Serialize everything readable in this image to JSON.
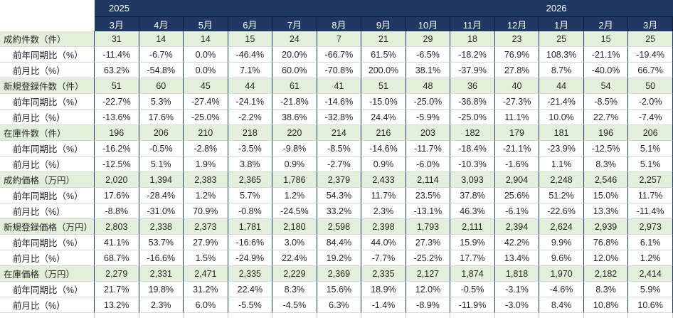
{
  "colors": {
    "header_bg": "#1F3864",
    "header_divider": "#0D1C38",
    "header_text": "#FFFFFF",
    "category_row_bg": "#E2EFDA",
    "sub_row_bg": "#FFFFFF",
    "vertical_grid": "#1F3864",
    "horizontal_grid": "#D9D9D9",
    "text": "#262626"
  },
  "chart_data": {
    "type": "table",
    "year_groups": [
      {
        "label": "2025",
        "span": 10
      },
      {
        "label": "2026",
        "span": 3
      }
    ],
    "months": [
      "3月",
      "4月",
      "5月",
      "6月",
      "7月",
      "8月",
      "9月",
      "10月",
      "11月",
      "12月",
      "1月",
      "2月",
      "3月"
    ],
    "rows": [
      {
        "label": "成約件数（件）",
        "style": "category",
        "values": [
          "31",
          "14",
          "14",
          "15",
          "24",
          "7",
          "21",
          "29",
          "18",
          "23",
          "25",
          "15",
          "25"
        ]
      },
      {
        "label": "前年同期比（%）",
        "style": "sub",
        "values": [
          "-11.4%",
          "-6.7%",
          "0.0%",
          "-46.4%",
          "20.0%",
          "-66.7%",
          "61.5%",
          "-6.5%",
          "-18.2%",
          "76.9%",
          "108.3%",
          "-21.1%",
          "-19.4%"
        ]
      },
      {
        "label": "前月比（%）",
        "style": "sub",
        "values": [
          "63.2%",
          "-54.8%",
          "0.0%",
          "7.1%",
          "60.0%",
          "-70.8%",
          "200.0%",
          "38.1%",
          "-37.9%",
          "27.8%",
          "8.7%",
          "-40.0%",
          "66.7%"
        ]
      },
      {
        "label": "新規登録件数（件）",
        "style": "category",
        "values": [
          "51",
          "60",
          "45",
          "44",
          "61",
          "41",
          "51",
          "48",
          "36",
          "40",
          "44",
          "54",
          "50"
        ]
      },
      {
        "label": "前年同期比（%）",
        "style": "sub",
        "values": [
          "-22.7%",
          "5.3%",
          "-27.4%",
          "-24.1%",
          "-21.8%",
          "-14.6%",
          "-15.0%",
          "-25.0%",
          "-36.8%",
          "-27.3%",
          "-21.4%",
          "-8.5%",
          "-2.0%"
        ]
      },
      {
        "label": "前月比（%）",
        "style": "sub",
        "values": [
          "-13.6%",
          "17.6%",
          "-25.0%",
          "-2.2%",
          "38.6%",
          "-32.8%",
          "24.4%",
          "-5.9%",
          "-25.0%",
          "11.1%",
          "10.0%",
          "22.7%",
          "-7.4%"
        ]
      },
      {
        "label": "在庫件数（件）",
        "style": "category",
        "values": [
          "196",
          "206",
          "210",
          "218",
          "220",
          "214",
          "216",
          "203",
          "182",
          "179",
          "181",
          "196",
          "206"
        ]
      },
      {
        "label": "前年同期比（%）",
        "style": "sub",
        "values": [
          "-16.2%",
          "-0.5%",
          "-2.8%",
          "-3.5%",
          "-9.8%",
          "-8.5%",
          "-14.6%",
          "-11.7%",
          "-18.4%",
          "-21.1%",
          "-23.9%",
          "-12.5%",
          "5.1%"
        ]
      },
      {
        "label": "前月比（%）",
        "style": "sub",
        "values": [
          "-12.5%",
          "5.1%",
          "1.9%",
          "3.8%",
          "0.9%",
          "-2.7%",
          "0.9%",
          "-6.0%",
          "-10.3%",
          "-1.6%",
          "1.1%",
          "8.3%",
          "5.1%"
        ]
      },
      {
        "label": "成約価格（万円）",
        "style": "category",
        "values": [
          "2,020",
          "1,394",
          "2,383",
          "2,365",
          "1,786",
          "2,379",
          "2,433",
          "2,114",
          "3,093",
          "2,904",
          "2,248",
          "2,546",
          "2,257"
        ]
      },
      {
        "label": "前年同期比（%）",
        "style": "sub",
        "values": [
          "17.6%",
          "-28.4%",
          "1.2%",
          "5.7%",
          "1.2%",
          "54.3%",
          "11.7%",
          "23.5%",
          "37.8%",
          "25.6%",
          "51.2%",
          "15.0%",
          "11.7%"
        ]
      },
      {
        "label": "前月比（%）",
        "style": "sub",
        "values": [
          "-8.8%",
          "-31.0%",
          "70.9%",
          "-0.8%",
          "-24.5%",
          "33.2%",
          "2.3%",
          "-13.1%",
          "46.3%",
          "-6.1%",
          "-22.6%",
          "13.3%",
          "-11.4%"
        ]
      },
      {
        "label": "新規登録価格（万円）",
        "style": "category",
        "values": [
          "2,803",
          "2,338",
          "2,373",
          "1,781",
          "2,180",
          "2,598",
          "2,398",
          "1,793",
          "2,111",
          "2,394",
          "2,624",
          "2,939",
          "2,973"
        ]
      },
      {
        "label": "前年同期比（%）",
        "style": "sub",
        "values": [
          "41.1%",
          "53.7%",
          "27.9%",
          "-16.6%",
          "3.0%",
          "84.4%",
          "44.0%",
          "27.3%",
          "15.9%",
          "42.2%",
          "9.9%",
          "76.8%",
          "6.1%"
        ]
      },
      {
        "label": "前月比（%）",
        "style": "sub",
        "values": [
          "68.7%",
          "-16.6%",
          "1.5%",
          "-24.9%",
          "22.4%",
          "19.2%",
          "-7.7%",
          "-25.2%",
          "17.7%",
          "13.4%",
          "9.6%",
          "12.0%",
          "1.2%"
        ]
      },
      {
        "label": "在庫価格（万円）",
        "style": "category",
        "values": [
          "2,279",
          "2,331",
          "2,471",
          "2,335",
          "2,229",
          "2,369",
          "2,335",
          "2,127",
          "1,874",
          "1,818",
          "1,970",
          "2,182",
          "2,414"
        ]
      },
      {
        "label": "前年同期比（%）",
        "style": "sub",
        "values": [
          "21.7%",
          "19.8%",
          "31.2%",
          "22.4%",
          "8.3%",
          "15.6%",
          "18.9%",
          "12.0%",
          "-0.5%",
          "-3.1%",
          "-4.6%",
          "8.3%",
          "5.9%"
        ]
      },
      {
        "label": "前月比（%）",
        "style": "sub",
        "values": [
          "13.2%",
          "2.3%",
          "6.0%",
          "-5.5%",
          "-4.5%",
          "6.3%",
          "-1.4%",
          "-8.9%",
          "-11.9%",
          "-3.0%",
          "8.4%",
          "10.8%",
          "10.6%"
        ]
      }
    ]
  }
}
